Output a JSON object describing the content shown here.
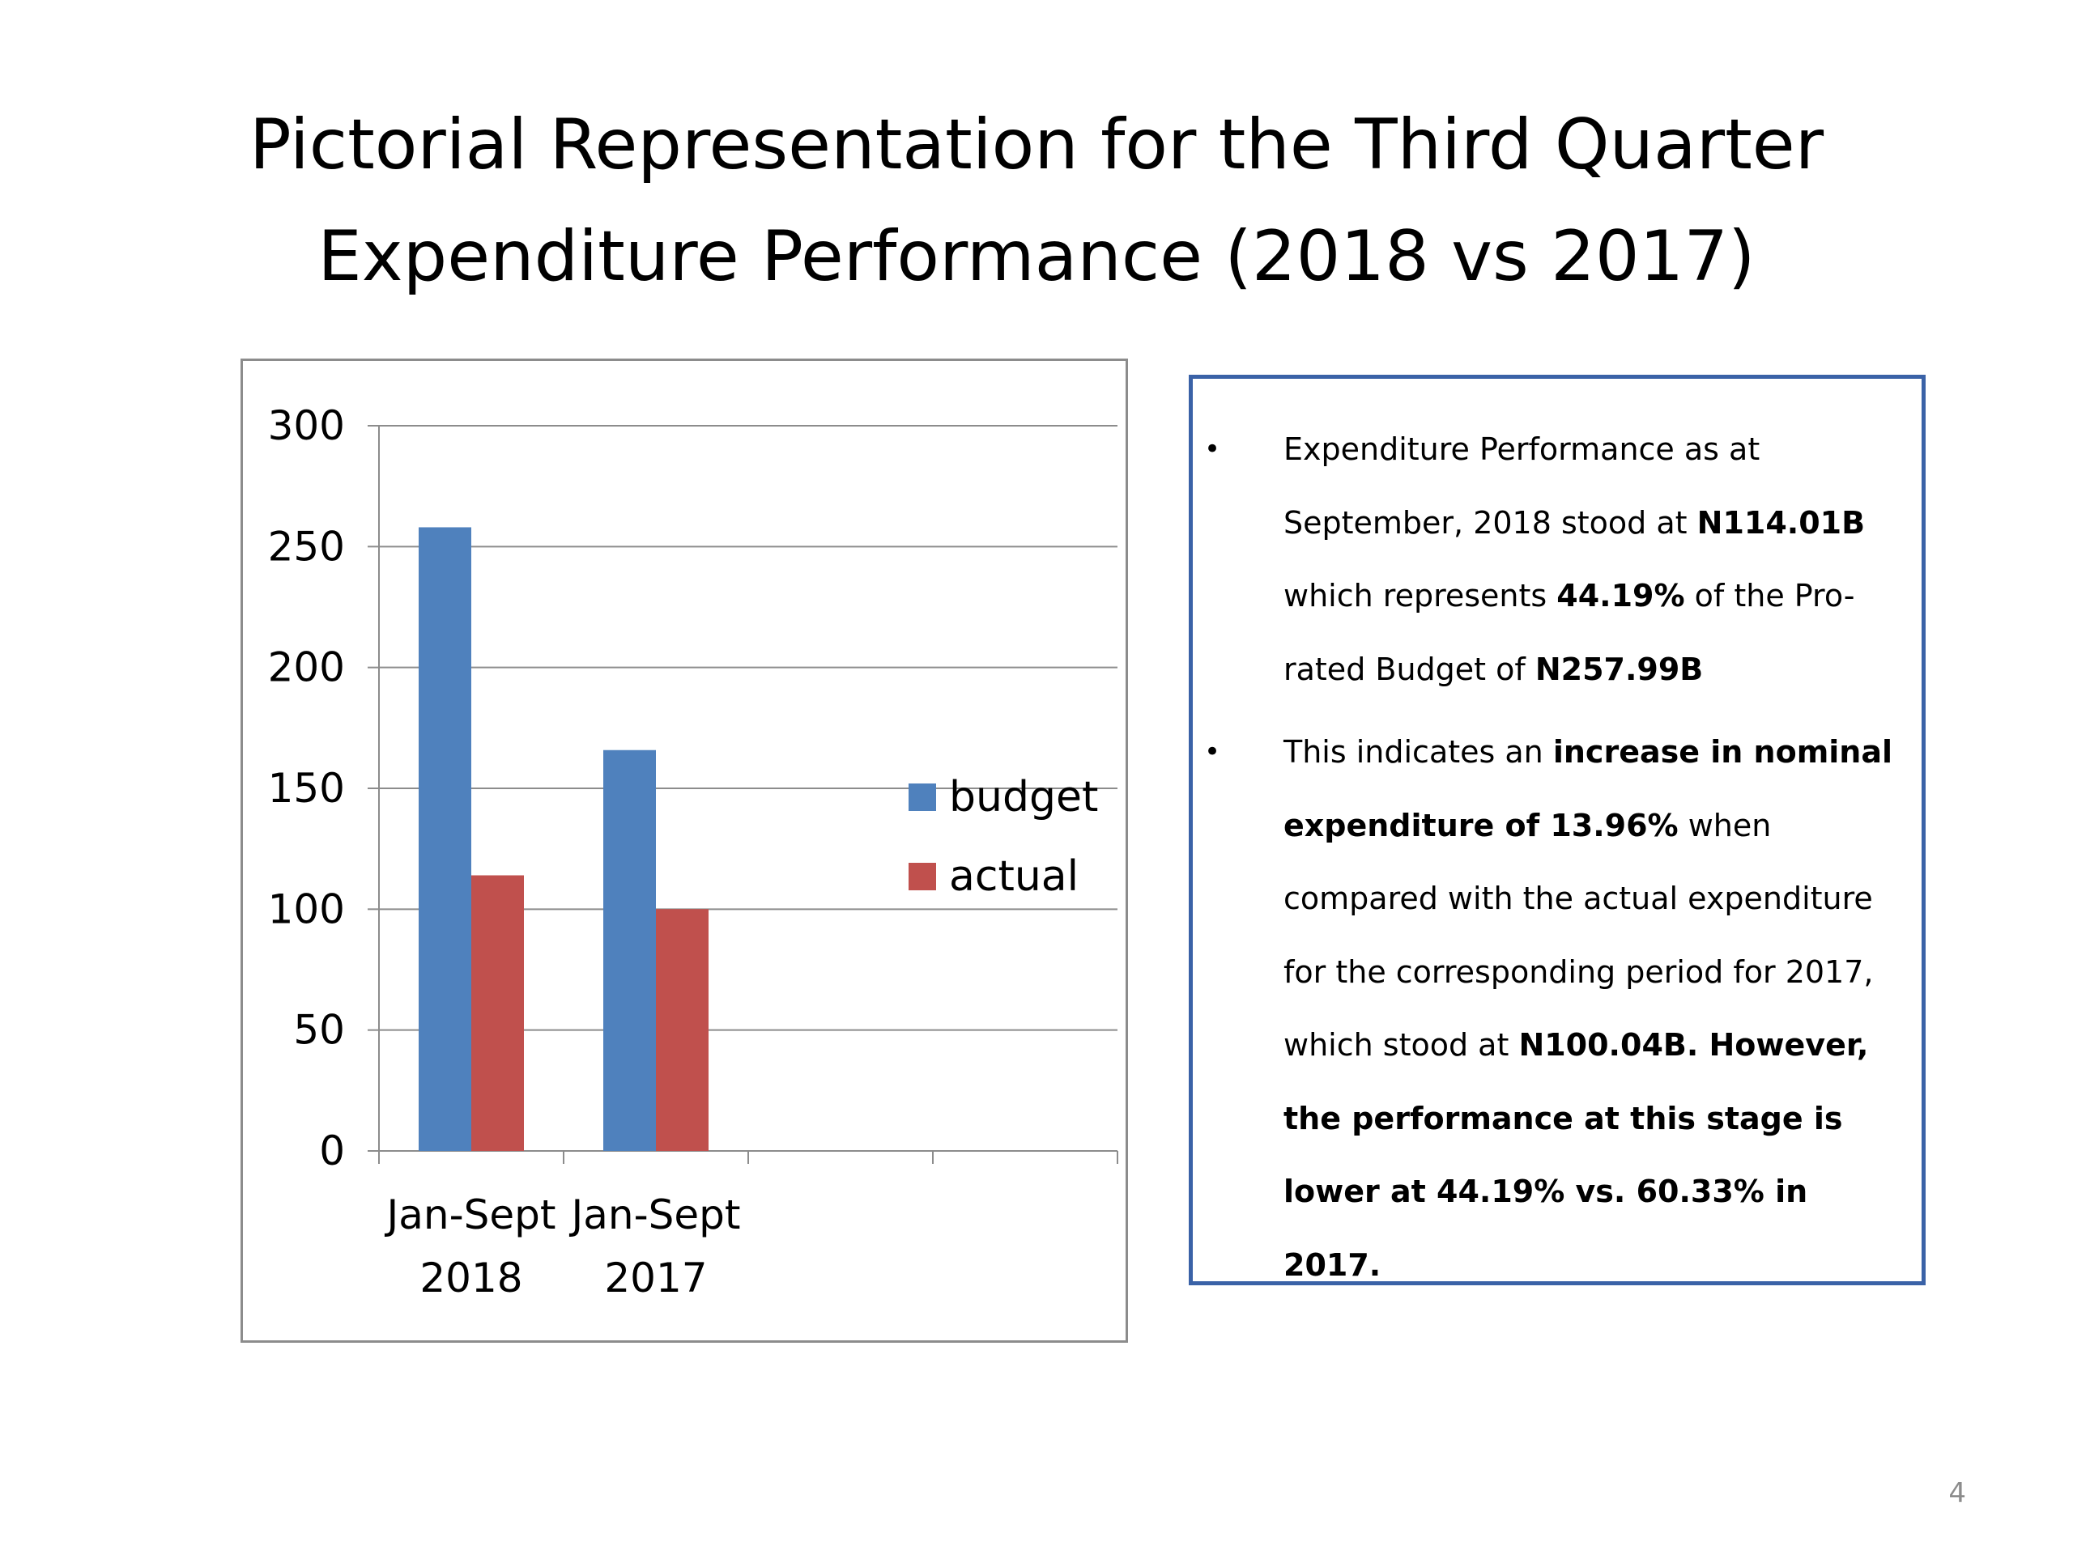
{
  "slide": {
    "title_line1": "Pictorial Representation for the Third Quarter",
    "title_line2": "Expenditure Performance (2018 vs 2017)",
    "page_number": "4"
  },
  "colors": {
    "budget": "#4f81bd",
    "actual": "#c0504d",
    "text_box_border": "#3a62a7",
    "grid": "#8c8c8c"
  },
  "chart_data": {
    "type": "bar",
    "categories": [
      "Jan-Sept\n2018",
      "Jan-Sept\n2017"
    ],
    "series": [
      {
        "name": "budget",
        "values": [
          257.99,
          165.82
        ]
      },
      {
        "name": "actual",
        "values": [
          114.01,
          100.04
        ]
      }
    ],
    "yticks": [
      "0",
      "50",
      "100",
      "150",
      "200",
      "250",
      "300"
    ],
    "ylim": [
      0,
      300
    ],
    "grid": true,
    "legend": "right"
  },
  "text_box": {
    "bullet1": [
      {
        "t": "Expenditure Performance as at September, 2018 stood at ",
        "b": false
      },
      {
        "t": "N114.01B",
        "b": true
      },
      {
        "t": " which represents  ",
        "b": false
      },
      {
        "t": "44.19%",
        "b": true
      },
      {
        "t": " of the Pro-rated Budget of ",
        "b": false
      },
      {
        "t": "N257.99B",
        "b": true
      }
    ],
    "bullet2": [
      {
        "t": "This indicates an ",
        "b": false
      },
      {
        "t": "increase in nominal expenditure of 13.96%",
        "b": true
      },
      {
        "t": " when compared with the actual expenditure for the corresponding period for 2017, which stood at ",
        "b": false
      },
      {
        "t": "N100.04B. However, the performance at this stage is lower at 44.19% vs. 60.33% in 2017.",
        "b": true
      }
    ],
    "bullet_char": "•"
  }
}
